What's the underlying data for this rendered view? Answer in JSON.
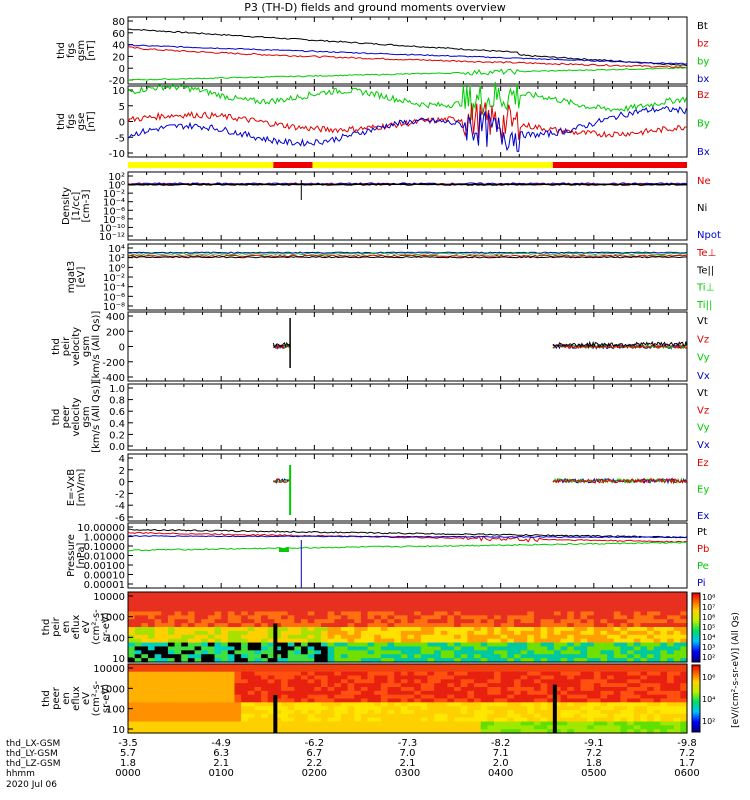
{
  "title": "P3 (TH-D) fields and ground moments overview",
  "colors": {
    "black": "#000000",
    "red": "#e00000",
    "green": "#00cc00",
    "blue": "#0000cc",
    "yellow": "#ffff00",
    "bar_red": "#ee0000"
  },
  "chart_data": [
    {
      "type": "line",
      "panel": "fgs_gsm",
      "ylabel": [
        "thd",
        "fgs",
        "gsm",
        "[nT]"
      ],
      "yticks": [
        "80",
        "60",
        "40",
        "20",
        "0",
        "-20"
      ],
      "ylim": [
        -20,
        80
      ],
      "legend": [
        {
          "name": "Bt",
          "color": "#000000"
        },
        {
          "name": "bz",
          "color": "#e00000"
        },
        {
          "name": "by",
          "color": "#00cc00"
        },
        {
          "name": "bx",
          "color": "#0000cc"
        }
      ]
    },
    {
      "type": "line",
      "panel": "fgs_gse",
      "ylabel": [
        "thd",
        "fgs",
        "gse",
        "[nT]"
      ],
      "yticks": [
        "10",
        "5",
        "0",
        "-5",
        "-10"
      ],
      "ylim": [
        -13,
        10
      ],
      "legend": [
        {
          "name": "Bz",
          "color": "#e00000"
        },
        {
          "name": "By",
          "color": "#00cc00"
        },
        {
          "name": "Bx",
          "color": "#0000cc"
        }
      ]
    },
    {
      "type": "bar",
      "panel": "mode_bar",
      "segments": [
        {
          "from": 0,
          "to": 0.26,
          "color": "yellow"
        },
        {
          "from": 0.26,
          "to": 0.33,
          "color": "red"
        },
        {
          "from": 0.33,
          "to": 0.76,
          "color": "yellow"
        },
        {
          "from": 0.76,
          "to": 1,
          "color": "red"
        }
      ]
    },
    {
      "type": "line",
      "panel": "density",
      "ylabel": [
        "Density",
        "[1/cc]",
        "[cm-3]"
      ],
      "yticks": [
        "10²",
        "10⁰",
        "10⁻²",
        "10⁻⁴",
        "10⁻⁶",
        "10⁻⁸",
        "10⁻¹⁰",
        "10⁻¹²"
      ],
      "legend": [
        {
          "name": "Ne",
          "color": "#e00000"
        },
        {
          "name": "Ni",
          "color": "#000000"
        },
        {
          "name": "Npot",
          "color": "#0000cc"
        }
      ]
    },
    {
      "type": "line",
      "panel": "temperature",
      "ylabel": [
        "mgat3",
        "[eV]"
      ],
      "yticks": [
        "10⁴",
        "10²",
        "10⁰",
        "10⁻²",
        "10⁻⁴",
        "10⁻⁶",
        "10⁻⁸"
      ],
      "legend": [
        {
          "name": "Te⊥",
          "color": "#e00000"
        },
        {
          "name": "Te||",
          "color": "#000000"
        },
        {
          "name": "Ti⊥",
          "color": "#00cc00"
        },
        {
          "name": "Ti||",
          "color": "#00cc00"
        }
      ]
    },
    {
      "type": "line",
      "panel": "ion_velocity",
      "ylabel": [
        "thd",
        "peir",
        "velocity",
        "gsm",
        "[km/s (All Qs)]"
      ],
      "yticks": [
        "400",
        "200",
        "0",
        "-200",
        "-400"
      ],
      "ylim": [
        -400,
        400
      ],
      "legend": [
        {
          "name": "Vt",
          "color": "#000000"
        },
        {
          "name": "Vz",
          "color": "#e00000"
        },
        {
          "name": "Vy",
          "color": "#00cc00"
        },
        {
          "name": "Vx",
          "color": "#0000cc"
        }
      ]
    },
    {
      "type": "line",
      "panel": "electron_velocity",
      "ylabel": [
        "thd",
        "peer",
        "velocity",
        "gsm",
        "[km/s (All Qs)]"
      ],
      "yticks": [
        "1.0",
        "0.8",
        "0.6",
        "0.4",
        "0.2",
        "0.0"
      ],
      "ylim": [
        0,
        1
      ],
      "legend": [
        {
          "name": "Vt",
          "color": "#000000"
        },
        {
          "name": "Vz",
          "color": "#e00000"
        },
        {
          "name": "Vy",
          "color": "#00cc00"
        },
        {
          "name": "Vx",
          "color": "#0000cc"
        }
      ]
    },
    {
      "type": "line",
      "panel": "efield",
      "ylabel": [
        "E=-VxB",
        "[mV/m]"
      ],
      "yticks": [
        "4",
        "2",
        "0",
        "-2",
        "-4",
        "-6"
      ],
      "ylim": [
        -6,
        4
      ],
      "legend": [
        {
          "name": "Ez",
          "color": "#e00000"
        },
        {
          "name": "Ey",
          "color": "#00cc00"
        },
        {
          "name": "Ex",
          "color": "#0000cc"
        }
      ]
    },
    {
      "type": "line",
      "panel": "pressure",
      "ylabel": [
        "Pressure",
        "[nPa]"
      ],
      "yticks": [
        "10.00000",
        "1.00000",
        "0.10000",
        "0.01000",
        "0.00100",
        "0.00010",
        "0.00001"
      ],
      "legend": [
        {
          "name": "Pt",
          "color": "#000000"
        },
        {
          "name": "Pb",
          "color": "#e00000"
        },
        {
          "name": "Pe",
          "color": "#00cc00"
        },
        {
          "name": "Pi",
          "color": "#0000cc"
        }
      ]
    },
    {
      "type": "heatmap",
      "panel": "ion_spectrogram",
      "ylabel": [
        "thd",
        "peir",
        "en",
        "eflux",
        "eV",
        "(cm²-s-",
        "sr-eV)"
      ],
      "yticks": [
        "10000",
        "1000",
        "100",
        "10"
      ]
    },
    {
      "type": "heatmap",
      "panel": "electron_spectrogram",
      "ylabel": [
        "thd",
        "peer",
        "en",
        "eflux",
        "eV",
        "(cm²-s-",
        "sr-eV)"
      ],
      "yticks": [
        "10000",
        "1000",
        "100",
        "10"
      ]
    }
  ],
  "colorbar": {
    "top_ticks": [
      "10⁸",
      "10⁷",
      "10⁶",
      "10⁵",
      "10⁴",
      "10³",
      "10²"
    ],
    "bottom_ticks": [
      "10⁶",
      "10⁴",
      "10²"
    ],
    "label": "[eV/(cm²-s-sr-eV)] (All Qs)"
  },
  "x_axis": {
    "rows": [
      {
        "label": "thd_LX-GSM",
        "values": [
          "-3.5",
          "-4.9",
          "-6.2",
          "-7.3",
          "-8.2",
          "-9.1",
          "-9.8"
        ]
      },
      {
        "label": "thd_LY-GSM",
        "values": [
          "5.7",
          "6.3",
          "6.7",
          "7.0",
          "7.1",
          "7.2",
          "7.2"
        ]
      },
      {
        "label": "thd_LZ-GSM",
        "values": [
          "1.8",
          "2.1",
          "2.2",
          "2.1",
          "2.0",
          "1.8",
          "1.7"
        ]
      },
      {
        "label": "hhmm",
        "values": [
          "0000",
          "0100",
          "0200",
          "0300",
          "0400",
          "0500",
          "0600"
        ]
      }
    ],
    "date": "2020 Jul 06"
  }
}
